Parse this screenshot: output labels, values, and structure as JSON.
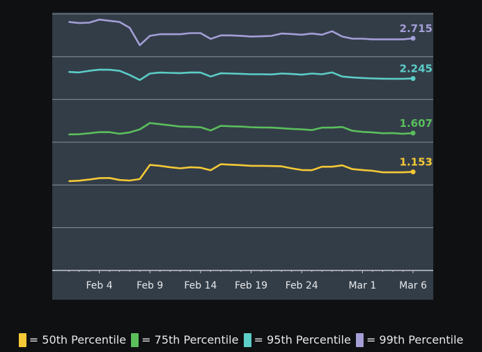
{
  "chart_data": {
    "type": "line",
    "title": "",
    "xlabel": "",
    "ylabel": "",
    "ylim": [
      0,
      3
    ],
    "y_gridlines": [
      0,
      0.5,
      1,
      1.5,
      2,
      2.5,
      3
    ],
    "grid": true,
    "x": [
      "Feb 1",
      "Feb 2",
      "Feb 3",
      "Feb 4",
      "Feb 5",
      "Feb 6",
      "Feb 7",
      "Feb 8",
      "Feb 9",
      "Feb 10",
      "Feb 11",
      "Feb 12",
      "Feb 13",
      "Feb 14",
      "Feb 15",
      "Feb 16",
      "Feb 17",
      "Feb 18",
      "Feb 19",
      "Feb 20",
      "Feb 21",
      "Feb 22",
      "Feb 23",
      "Feb 24",
      "Feb 25",
      "Feb 26",
      "Feb 27",
      "Feb 28",
      "Feb 29",
      "Mar 1",
      "Mar 2",
      "Mar 3",
      "Mar 4",
      "Mar 5",
      "Mar 6"
    ],
    "x_tick_labels": [
      "Feb 4",
      "Feb 9",
      "Feb 14",
      "Feb 19",
      "Feb 24",
      "Mar 1",
      "Mar 6"
    ],
    "legend_position": "bottom",
    "series": [
      {
        "name": "50th Percentile",
        "color": "#f5c936",
        "last_label": "1.153",
        "values": [
          1.044,
          1.05,
          1.063,
          1.079,
          1.082,
          1.058,
          1.052,
          1.069,
          1.234,
          1.224,
          1.207,
          1.194,
          1.207,
          1.202,
          1.172,
          1.242,
          1.237,
          1.232,
          1.224,
          1.224,
          1.221,
          1.218,
          1.194,
          1.175,
          1.172,
          1.213,
          1.213,
          1.229,
          1.185,
          1.175,
          1.166,
          1.148,
          1.148,
          1.148,
          1.153
        ]
      },
      {
        "name": "75th Percentile",
        "color": "#5bbf5c",
        "last_label": "1.607",
        "values": [
          1.591,
          1.593,
          1.604,
          1.617,
          1.617,
          1.599,
          1.615,
          1.65,
          1.724,
          1.71,
          1.697,
          1.683,
          1.68,
          1.675,
          1.637,
          1.691,
          1.686,
          1.683,
          1.675,
          1.672,
          1.67,
          1.664,
          1.656,
          1.65,
          1.642,
          1.67,
          1.67,
          1.678,
          1.634,
          1.621,
          1.615,
          1.604,
          1.607,
          1.599,
          1.607
        ]
      },
      {
        "name": "95th Percentile",
        "color": "#5ccdc8",
        "last_label": "2.245",
        "values": [
          2.322,
          2.316,
          2.335,
          2.349,
          2.347,
          2.335,
          2.286,
          2.227,
          2.303,
          2.314,
          2.311,
          2.308,
          2.316,
          2.314,
          2.268,
          2.306,
          2.303,
          2.3,
          2.295,
          2.295,
          2.292,
          2.303,
          2.298,
          2.29,
          2.303,
          2.295,
          2.316,
          2.268,
          2.257,
          2.251,
          2.246,
          2.243,
          2.241,
          2.241,
          2.245
        ]
      },
      {
        "name": "99th Percentile",
        "color": "#a49fd6",
        "last_label": "2.715",
        "values": [
          2.906,
          2.893,
          2.898,
          2.934,
          2.92,
          2.906,
          2.838,
          2.635,
          2.744,
          2.763,
          2.763,
          2.763,
          2.776,
          2.776,
          2.708,
          2.749,
          2.749,
          2.744,
          2.736,
          2.738,
          2.743,
          2.771,
          2.765,
          2.757,
          2.771,
          2.757,
          2.798,
          2.736,
          2.711,
          2.711,
          2.703,
          2.703,
          2.703,
          2.703,
          2.715
        ]
      }
    ]
  },
  "legend": {
    "items": [
      {
        "label": "= 50th Percentile",
        "color": "#f5c936"
      },
      {
        "label": "= 75th Percentile",
        "color": "#5bbf5c"
      },
      {
        "label": "= 95th Percentile",
        "color": "#5ccdc8"
      },
      {
        "label": "= 99th Percentile",
        "color": "#a49fd6"
      }
    ]
  }
}
